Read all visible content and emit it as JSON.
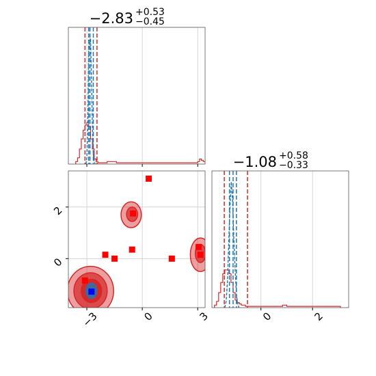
{
  "chart_data": {
    "type": "corner",
    "colors": {
      "red": "#d62728",
      "blue": "#1f77b4",
      "red_marker": "#ff0000",
      "blue_marker": "#0000ff",
      "grid": "#cccccc"
    },
    "x_param": {
      "title_main": "−2.83",
      "title_plus": "+0.53",
      "title_minus": "−0.45",
      "lim": [
        -4.0,
        3.4
      ],
      "ticks": [
        -3,
        0,
        3
      ],
      "tick_labels": [
        "−3",
        "0",
        "3"
      ],
      "quantiles_red": [
        -3.1,
        -2.45
      ],
      "quantiles_blue": [
        -2.9,
        -2.83,
        -2.65
      ],
      "hist_red": {
        "start": -3.6,
        "width": 0.1,
        "values": [
          0.02,
          0.05,
          0.12,
          0.2,
          0.27,
          0.31,
          0.33,
          0.3,
          0.2,
          0.12,
          0.04,
          0.02,
          0.01,
          0.01,
          0.01,
          0.01,
          0.01,
          0.02,
          0.02,
          0.02,
          0.02,
          0.02,
          0.01,
          0.01,
          0.01,
          0.01,
          0.01,
          0.01,
          0.01,
          0.01,
          0.01,
          0.01,
          0.01,
          0.01,
          0.01,
          0.01,
          0.01,
          0.01,
          0.01,
          0.01,
          0.01,
          0.01,
          0.01,
          0.01,
          0.01,
          0.01,
          0.01,
          0.01,
          0.01,
          0.01,
          0.01,
          0.01,
          0.01,
          0.01,
          0.01,
          0.01,
          0.01,
          0.01,
          0.01,
          0.01,
          0.01,
          0.01,
          0.01,
          0.01,
          0.01,
          0.01,
          0.02,
          0.04,
          0.03,
          0.02,
          0.01
        ]
      },
      "hist_blue": {
        "x": [
          -3.05,
          -3.0,
          -2.95,
          -2.9,
          -2.85,
          -2.8,
          -2.75,
          -2.7,
          -2.65,
          -2.6,
          -2.55
        ],
        "values": [
          0.0,
          0.05,
          0.3,
          0.9,
          0.98,
          1.0,
          0.7,
          0.3,
          0.08,
          0.02,
          0.0
        ]
      }
    },
    "y_param": {
      "title_main": "−1.08",
      "title_plus": "+0.58",
      "title_minus": "−0.33",
      "lim": [
        -1.9,
        3.4
      ],
      "ticks": [
        0,
        2
      ],
      "tick_labels_y": [
        "0",
        "2"
      ],
      "tick_labels_x": [
        "0",
        "2"
      ],
      "quantiles_red": [
        -1.42,
        -0.52
      ],
      "quantiles_blue": [
        -1.22,
        -1.08,
        -0.95
      ],
      "hist_red": {
        "start": -1.8,
        "width": 0.08,
        "values": [
          0.02,
          0.05,
          0.12,
          0.2,
          0.27,
          0.3,
          0.3,
          0.27,
          0.2,
          0.12,
          0.06,
          0.04,
          0.03,
          0.02,
          0.02,
          0.01,
          0.01,
          0.01,
          0.01,
          0.01,
          0.01,
          0.01,
          0.01,
          0.01,
          0.01,
          0.01,
          0.01,
          0.01,
          0.01,
          0.01,
          0.01,
          0.01,
          0.01,
          0.02,
          0.02,
          0.01,
          0.01,
          0.01,
          0.01,
          0.01,
          0.01,
          0.01,
          0.01,
          0.01,
          0.01,
          0.01,
          0.01,
          0.01,
          0.01,
          0.01,
          0.01,
          0.01,
          0.01,
          0.01,
          0.01,
          0.01,
          0.01,
          0.01,
          0.01,
          0.01,
          0.01
        ]
      },
      "hist_blue": {
        "x": [
          -1.4,
          -1.35,
          -1.3,
          -1.25,
          -1.2,
          -1.15,
          -1.1,
          -1.05,
          -1.0,
          -0.95,
          -0.9,
          -0.85
        ],
        "values": [
          0.0,
          0.05,
          0.2,
          0.5,
          0.8,
          1.0,
          0.85,
          0.55,
          0.3,
          0.1,
          0.03,
          0.0
        ]
      }
    },
    "scatter_red_markers": [
      [
        0.35,
        3.1
      ],
      [
        -0.5,
        1.75
      ],
      [
        -2.0,
        0.15
      ],
      [
        -1.5,
        0.0
      ],
      [
        -0.55,
        0.35
      ],
      [
        1.6,
        -0.0
      ],
      [
        3.05,
        0.45
      ],
      [
        3.15,
        0.15
      ],
      [
        -3.1,
        -0.85
      ]
    ],
    "scatter_blue_markers": [
      [
        -2.75,
        -1.28
      ]
    ],
    "contours_red": [
      {
        "cx": -2.8,
        "cy": -1.25,
        "rx": 1.25,
        "ry": 0.95,
        "level": "outer"
      },
      {
        "cx": -2.8,
        "cy": -1.25,
        "rx": 0.9,
        "ry": 0.7,
        "level": "mid"
      },
      {
        "cx": -2.75,
        "cy": -1.25,
        "rx": 0.55,
        "ry": 0.45,
        "level": "inner"
      },
      {
        "cx": -0.6,
        "cy": 1.7,
        "rx": 0.55,
        "ry": 0.5,
        "level": "outer"
      },
      {
        "cx": -0.55,
        "cy": 1.72,
        "rx": 0.3,
        "ry": 0.28,
        "level": "mid"
      },
      {
        "cx": 3.15,
        "cy": 0.15,
        "rx": 0.55,
        "ry": 0.65,
        "level": "outer"
      },
      {
        "cx": 3.15,
        "cy": 0.2,
        "rx": 0.28,
        "ry": 0.35,
        "level": "mid"
      }
    ],
    "contours_blue": [
      {
        "cx": -2.75,
        "cy": -1.25,
        "rx": 0.3,
        "ry": 0.3,
        "level": "outer"
      },
      {
        "cx": -2.75,
        "cy": -1.27,
        "rx": 0.15,
        "ry": 0.15,
        "level": "inner"
      }
    ],
    "grid": true
  }
}
